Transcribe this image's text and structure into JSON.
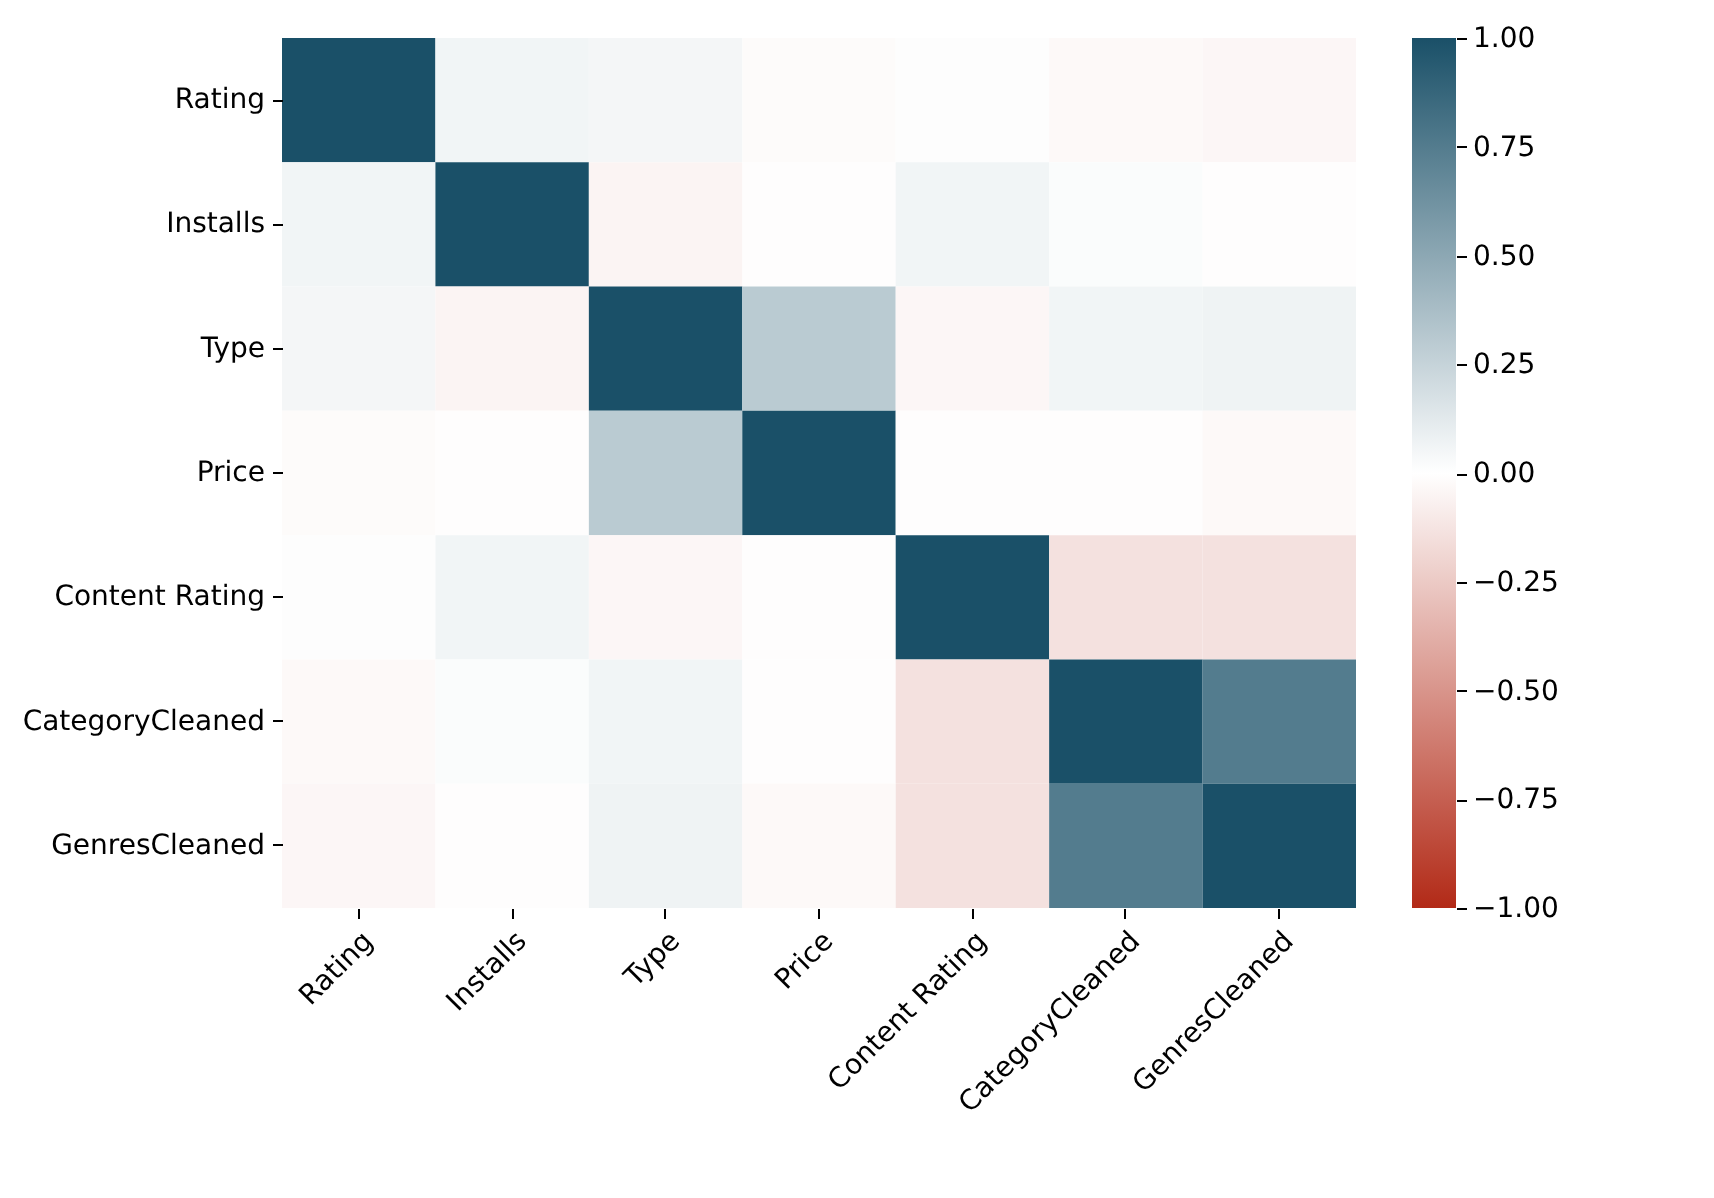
{
  "chart_data": {
    "type": "heatmap",
    "categories": [
      "Rating",
      "Installs",
      "Type",
      "Price",
      "Content Rating",
      "CategoryCleaned",
      "GenresCleaned"
    ],
    "y_categories": [
      "Rating",
      "Installs",
      "Type",
      "Price",
      "Content Rating",
      "CategoryCleaned",
      "GenresCleaned"
    ],
    "cells": [
      [
        1,
        0.06,
        0.05,
        -0.02,
        0.01,
        -0.03,
        -0.04
      ],
      [
        0.06,
        1,
        -0.05,
        -0.01,
        0.06,
        0.02,
        -0.01
      ],
      [
        0.05,
        -0.05,
        1,
        0.3,
        -0.04,
        0.06,
        0.07
      ],
      [
        -0.02,
        -0.01,
        0.3,
        1,
        -0.01,
        -0.01,
        -0.03
      ],
      [
        0.01,
        0.06,
        -0.04,
        -0.01,
        1,
        -0.14,
        -0.14
      ],
      [
        -0.03,
        0.02,
        0.06,
        -0.01,
        -0.14,
        1,
        0.75
      ],
      [
        -0.04,
        -0.01,
        0.07,
        -0.03,
        -0.14,
        0.75,
        1
      ]
    ],
    "colors": [
      "#b22a17",
      "#ffffff",
      "#1a5068"
    ],
    "clim": [
      -1,
      1
    ],
    "cticks": [
      {
        "value": -1,
        "label": "−1.00"
      },
      -0.75,
      {
        "value": -0.5,
        "label": "−0.50"
      },
      -0.25,
      {
        "value": 0,
        "label": "0.00"
      },
      0.25,
      {
        "value": 0.5,
        "label": "0.50"
      },
      0.75,
      {
        "value": 1,
        "label": "1.00"
      }
    ]
  }
}
